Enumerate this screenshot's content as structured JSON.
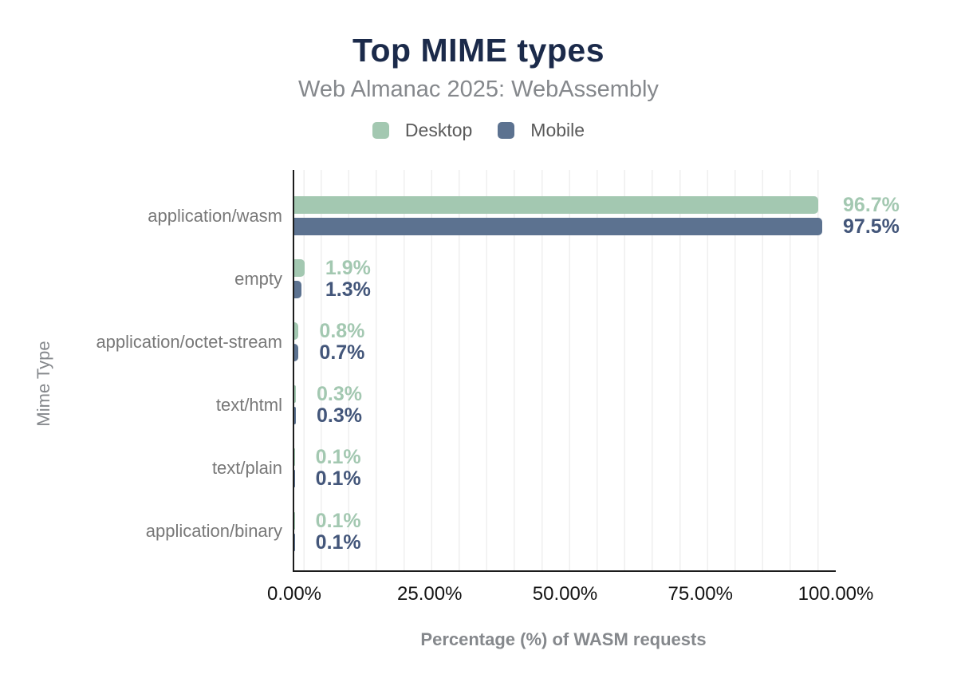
{
  "header": {
    "title": "Top MIME types",
    "subtitle": "Web Almanac 2025: WebAssembly"
  },
  "legend": {
    "items": [
      {
        "label": "Desktop"
      },
      {
        "label": "Mobile"
      }
    ]
  },
  "colors": {
    "title": "#1b2a4a",
    "subtitle": "#85888c",
    "desktop": "#a3c8b1",
    "mobile": "#5c7290",
    "desktop_value_label": "#a3c8b1",
    "mobile_value_label": "#43567a",
    "category_label": "#787878",
    "tick_label": "#141414",
    "axis_line": "#1c1c1c",
    "gridline": "#efefef"
  },
  "chart_data": {
    "type": "bar",
    "orientation": "horizontal",
    "title": "Top MIME types",
    "subtitle": "Web Almanac 2025: WebAssembly",
    "categories": [
      "application/wasm",
      "empty",
      "application/octet-stream",
      "text/html",
      "text/plain",
      "application/binary"
    ],
    "series": [
      {
        "name": "Desktop",
        "color": "#a3c8b1",
        "values": [
          96.7,
          1.9,
          0.8,
          0.3,
          0.1,
          0.1
        ],
        "labels": [
          "96.7%",
          "1.9%",
          "0.8%",
          "0.3%",
          "0.1%",
          "0.1%"
        ]
      },
      {
        "name": "Mobile",
        "color": "#5c7290",
        "values": [
          97.5,
          1.3,
          0.7,
          0.3,
          0.1,
          0.1
        ],
        "labels": [
          "97.5%",
          "1.3%",
          "0.7%",
          "0.3%",
          "0.1%",
          "0.1%"
        ]
      }
    ],
    "xlabel": "Percentage (%) of WASM requests",
    "ylabel": "Mime Type",
    "xlim": [
      0,
      100
    ],
    "x_ticks": [
      "0.00%",
      "25.00%",
      "50.00%",
      "75.00%",
      "100.00%"
    ],
    "grid": "vertical-minor",
    "legend_position": "top"
  }
}
